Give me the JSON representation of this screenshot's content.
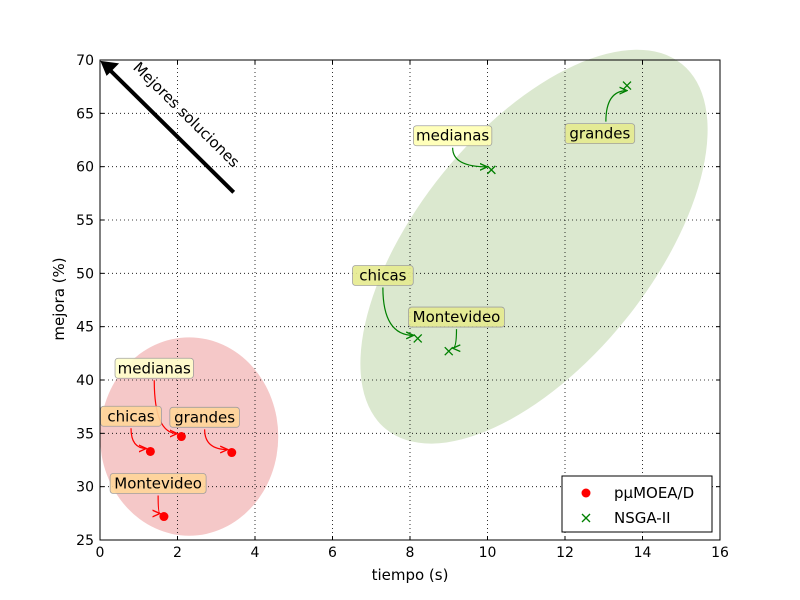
{
  "chart_data": {
    "type": "scatter",
    "xlabel": "tiempo (s)",
    "ylabel": "mejora (%)",
    "xlim": [
      0,
      16
    ],
    "ylim": [
      25,
      70
    ],
    "xticks": [
      0,
      2,
      4,
      6,
      8,
      10,
      12,
      14,
      16
    ],
    "yticks": [
      25,
      30,
      35,
      40,
      45,
      50,
      55,
      60,
      65,
      70
    ],
    "grid": true,
    "legend_position": "lower-right",
    "series": [
      {
        "name": "pμMOEA/D",
        "marker": "circle",
        "color": "#ff0000",
        "points": [
          {
            "label": "chicas",
            "x": 1.3,
            "y": 33.3
          },
          {
            "label": "medianas",
            "x": 2.1,
            "y": 34.7
          },
          {
            "label": "grandes",
            "x": 3.4,
            "y": 33.2
          },
          {
            "label": "Montevideo",
            "x": 1.65,
            "y": 27.2
          }
        ]
      },
      {
        "name": "NSGA-II",
        "marker": "x",
        "color": "#008000",
        "points": [
          {
            "label": "chicas",
            "x": 8.2,
            "y": 43.9
          },
          {
            "label": "medianas",
            "x": 10.1,
            "y": 59.7
          },
          {
            "label": "grandes",
            "x": 13.6,
            "y": 67.6
          },
          {
            "label": "Montevideo",
            "x": 9.0,
            "y": 42.7
          }
        ]
      }
    ],
    "arrow_annotation": {
      "text": "Mejores soluciones",
      "from": {
        "x": 3.45,
        "y": 57.6
      },
      "to": {
        "x": 0.05,
        "y": 69.8
      }
    },
    "regions": [
      {
        "name": "pμMOEA/D",
        "cx": 2.3,
        "cy": 34.7,
        "rx": 2.3,
        "ry": 9.3,
        "color": "#f2b5b5"
      },
      {
        "name": "NSGA-II",
        "cx": 11.2,
        "cy": 52.5,
        "rx": 4.9,
        "ry": 22.0,
        "color": "#cfe0bf"
      }
    ],
    "label_boxes": [
      {
        "series": 0,
        "point": 0,
        "text": "chicas",
        "bx": 0.8,
        "by": 36.6,
        "fill": "#ffd699"
      },
      {
        "series": 0,
        "point": 1,
        "text": "medianas",
        "bx": 1.4,
        "by": 41.1,
        "fill": "#ffffcc"
      },
      {
        "series": 0,
        "point": 2,
        "text": "grandes",
        "bx": 2.7,
        "by": 36.5,
        "fill": "#ffd699"
      },
      {
        "series": 0,
        "point": 3,
        "text": "Montevideo",
        "bx": 1.5,
        "by": 30.3,
        "fill": "#ffd699"
      },
      {
        "series": 1,
        "point": 0,
        "text": "chicas",
        "bx": 7.3,
        "by": 49.8,
        "fill": "#e6eb8f"
      },
      {
        "series": 1,
        "point": 1,
        "text": "medianas",
        "bx": 9.1,
        "by": 62.9,
        "fill": "#ffffb3"
      },
      {
        "series": 1,
        "point": 2,
        "text": "grandes",
        "bx": 12.9,
        "by": 63.1,
        "fill": "#e6eb8f"
      },
      {
        "series": 1,
        "point": 3,
        "text": "Montevideo",
        "bx": 9.2,
        "by": 45.9,
        "fill": "#e6eb8f"
      }
    ]
  }
}
